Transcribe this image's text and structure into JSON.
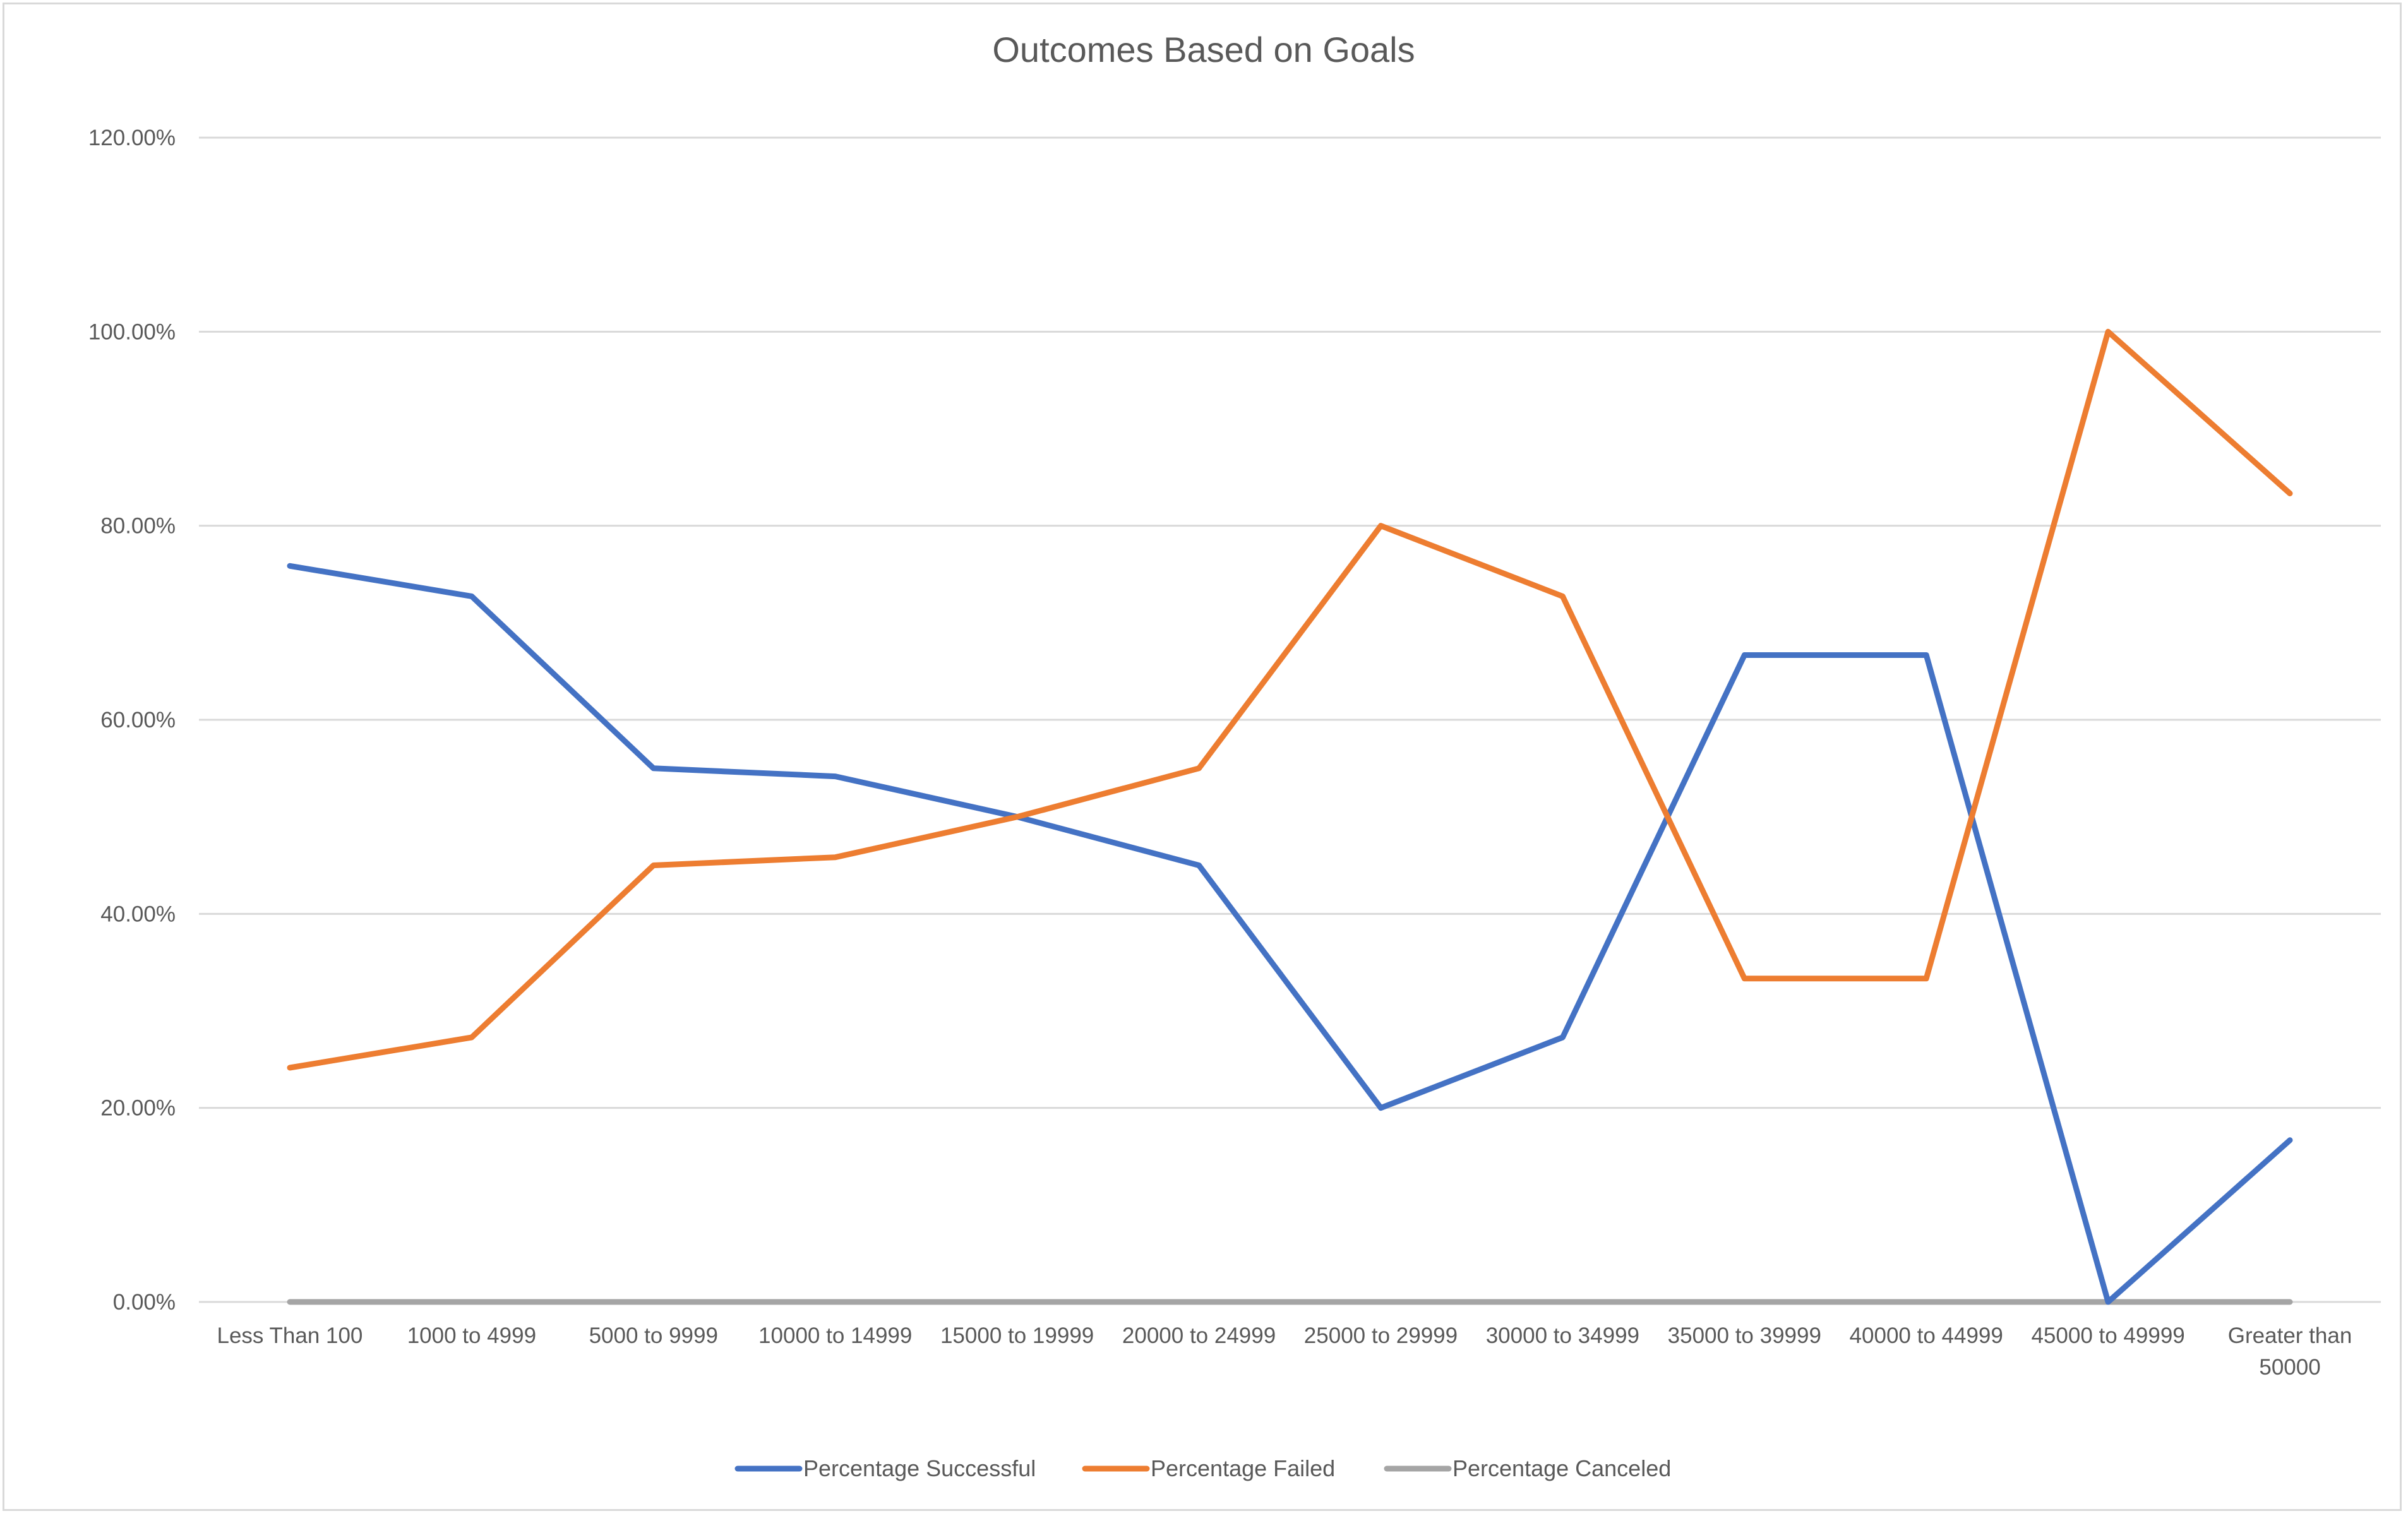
{
  "chart_data": {
    "type": "line",
    "title": "Outcomes Based on Goals",
    "categories": [
      [
        "Less Than 100"
      ],
      [
        "1000 to 4999"
      ],
      [
        "5000 to 9999"
      ],
      [
        "10000 to 14999"
      ],
      [
        "15000 to 19999"
      ],
      [
        "20000 to 24999"
      ],
      [
        "25000 to 29999"
      ],
      [
        "30000 to 34999"
      ],
      [
        "35000 to 39999"
      ],
      [
        "40000 to 44999"
      ],
      [
        "45000 to 49999"
      ],
      [
        "Greater than",
        "50000"
      ]
    ],
    "ylim": [
      0,
      1.2
    ],
    "yticks": [
      0,
      0.2,
      0.4,
      0.6,
      0.8,
      1.0,
      1.2
    ],
    "ytick_labels": [
      "0.00%",
      "20.00%",
      "40.00%",
      "60.00%",
      "80.00%",
      "100.00%",
      "120.00%"
    ],
    "grid": true,
    "legend_position": "bottom",
    "series": [
      {
        "name": "Percentage Successful",
        "color": "#4472c4",
        "values": [
          0.7586,
          0.7273,
          0.55,
          0.5417,
          0.5,
          0.45,
          0.2,
          0.2727,
          0.6667,
          0.6667,
          0.0,
          0.1667
        ]
      },
      {
        "name": "Percentage Failed",
        "color": "#ed7d31",
        "values": [
          0.2414,
          0.2727,
          0.45,
          0.4583,
          0.5,
          0.55,
          0.8,
          0.7273,
          0.3333,
          0.3333,
          1.0,
          0.8333
        ]
      },
      {
        "name": "Percentage Canceled",
        "color": "#a5a5a5",
        "values": [
          0,
          0,
          0,
          0,
          0,
          0,
          0,
          0,
          0,
          0,
          0,
          0
        ]
      }
    ]
  }
}
